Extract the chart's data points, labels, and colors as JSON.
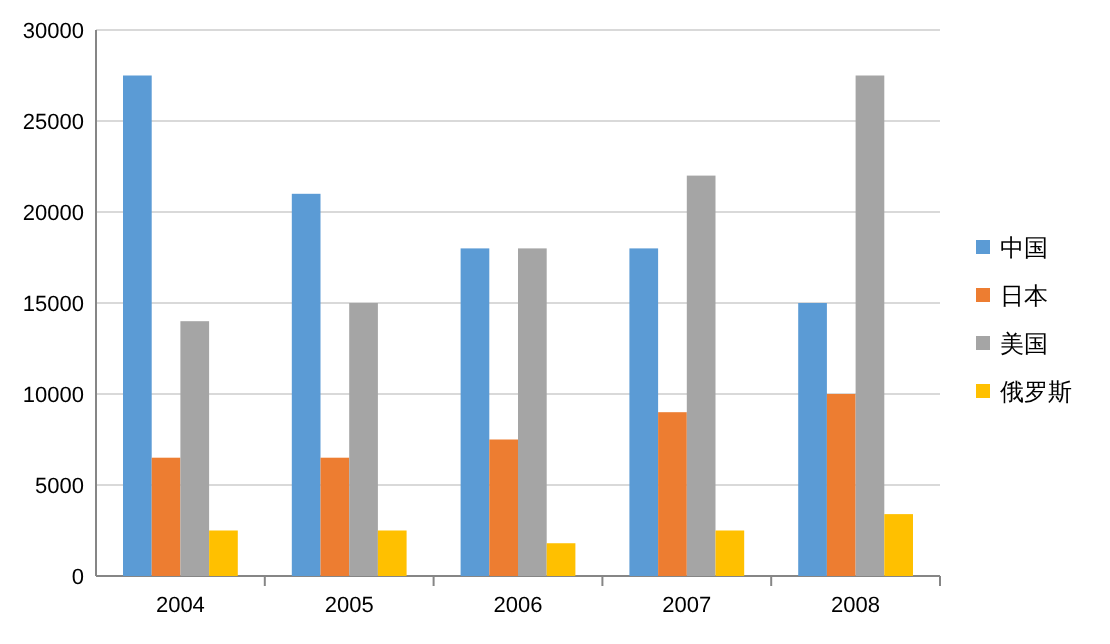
{
  "chart_data": {
    "type": "bar",
    "categories": [
      "2004",
      "2005",
      "2006",
      "2007",
      "2008"
    ],
    "series": [
      {
        "name": "中国",
        "color": "#5b9bd5",
        "values": [
          27500,
          21000,
          18000,
          18000,
          15000
        ]
      },
      {
        "name": "日本",
        "color": "#ed7d31",
        "values": [
          6500,
          6500,
          7500,
          9000,
          10000
        ]
      },
      {
        "name": "美国",
        "color": "#a5a5a5",
        "values": [
          14000,
          15000,
          18000,
          22000,
          27500
        ]
      },
      {
        "name": "俄罗斯",
        "color": "#ffc000",
        "values": [
          2500,
          2500,
          1800,
          2500,
          3400
        ]
      }
    ],
    "ylim": [
      0,
      30000
    ],
    "yticks": [
      0,
      5000,
      10000,
      15000,
      20000,
      25000,
      30000
    ],
    "grid": "y",
    "legend": "right"
  }
}
